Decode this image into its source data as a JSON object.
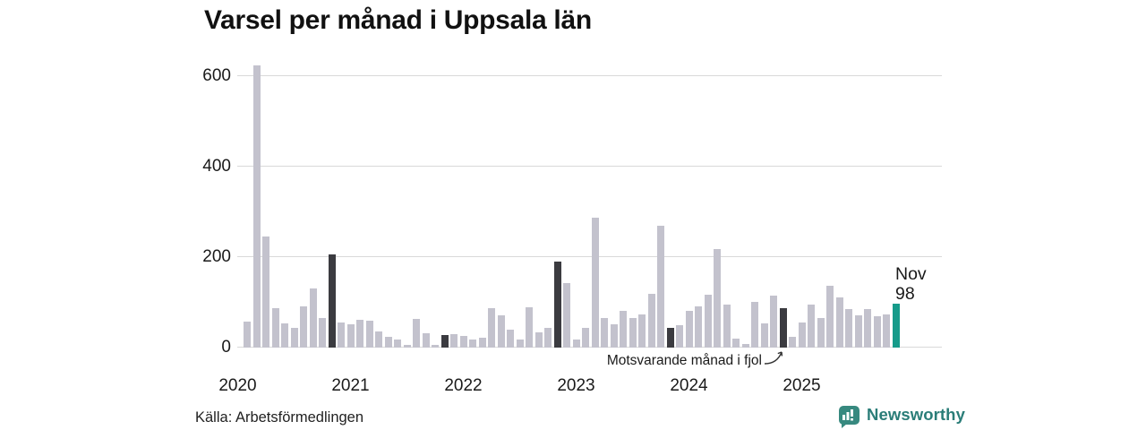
{
  "title": "Varsel per månad i Uppsala län",
  "source": "Källa: Arbetsförmedlingen",
  "annotation": {
    "text": "Motsvarande månad i fjol"
  },
  "last_point_label": {
    "month": "Nov",
    "value": "98"
  },
  "branding": {
    "name": "Newsworthy",
    "badge_color": "#37897f",
    "text_color": "#2a7d78",
    "icon": "bar-chart-speech-bubble"
  },
  "colors": {
    "bar_default": "#c3c2cd",
    "bar_previous_november": "#3b3b40",
    "bar_current": "#169b8a",
    "gridline": "#d9d9d9",
    "text": "#1a1a1a"
  },
  "chart_data": {
    "type": "bar",
    "title": "Varsel per månad i Uppsala län",
    "xlabel": "",
    "ylabel": "",
    "ylim": [
      0,
      630
    ],
    "yticks": [
      0,
      200,
      400,
      600
    ],
    "grid": "horizontal",
    "legend": "none",
    "year_ticks": [
      "2020",
      "2021",
      "2022",
      "2023",
      "2024",
      "2025"
    ],
    "x": [
      "2020-02",
      "2020-03",
      "2020-04",
      "2020-05",
      "2020-06",
      "2020-07",
      "2020-08",
      "2020-09",
      "2020-10",
      "2020-11",
      "2020-12",
      "2021-01",
      "2021-02",
      "2021-03",
      "2021-04",
      "2021-05",
      "2021-06",
      "2021-07",
      "2021-08",
      "2021-09",
      "2021-10",
      "2021-11",
      "2021-12",
      "2022-01",
      "2022-02",
      "2022-03",
      "2022-04",
      "2022-05",
      "2022-06",
      "2022-07",
      "2022-08",
      "2022-09",
      "2022-10",
      "2022-11",
      "2022-12",
      "2023-01",
      "2023-02",
      "2023-03",
      "2023-04",
      "2023-05",
      "2023-06",
      "2023-07",
      "2023-08",
      "2023-09",
      "2023-10",
      "2023-11",
      "2023-12",
      "2024-01",
      "2024-02",
      "2024-03",
      "2024-04",
      "2024-05",
      "2024-06",
      "2024-07",
      "2024-08",
      "2024-09",
      "2024-10",
      "2024-11",
      "2024-12",
      "2025-01",
      "2025-02",
      "2025-03",
      "2025-04",
      "2025-05",
      "2025-06",
      "2025-07",
      "2025-08",
      "2025-09",
      "2025-10",
      "2025-11"
    ],
    "values": [
      57,
      625,
      245,
      88,
      53,
      43,
      92,
      130,
      66,
      207,
      56,
      51,
      62,
      60,
      35,
      24,
      17,
      6,
      63,
      31,
      6,
      28,
      30,
      25,
      18,
      22,
      88,
      71,
      40,
      17,
      90,
      33,
      43,
      190,
      142,
      17,
      43,
      287,
      66,
      51,
      82,
      66,
      74,
      119,
      270,
      43,
      49,
      81,
      92,
      117,
      218,
      96,
      20,
      8,
      102,
      53,
      115,
      88,
      24,
      55,
      96,
      66,
      137,
      110,
      86,
      71,
      86,
      69,
      73,
      98
    ],
    "dark_months": [
      "2020-11",
      "2021-11",
      "2022-11",
      "2023-11",
      "2024-11"
    ],
    "teal_month": "2025-11",
    "annotated_month": "2024-11"
  }
}
